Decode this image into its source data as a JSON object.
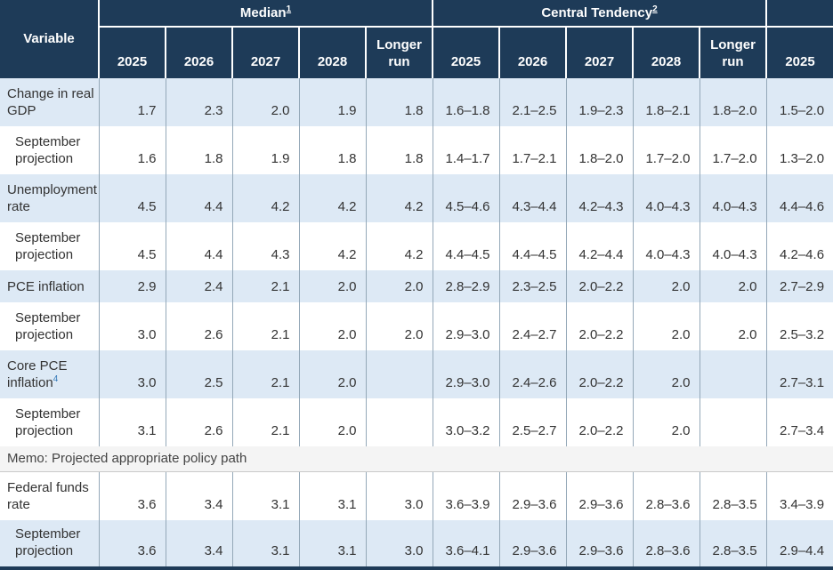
{
  "table": {
    "variable_header": "Variable",
    "groups": [
      {
        "label": "Median",
        "footnote": "1"
      },
      {
        "label": "Central Tendency",
        "footnote": "2"
      },
      {
        "label": "",
        "footnote": ""
      }
    ],
    "columns": [
      "2025",
      "2026",
      "2027",
      "2028",
      "Longer run",
      "2025",
      "2026",
      "2027",
      "2028",
      "Longer run",
      "2025"
    ],
    "rows": [
      {
        "label": "Change in real GDP",
        "footnote": "",
        "indent": false,
        "shade": "blue",
        "size": "tall",
        "values": [
          "1.7",
          "2.3",
          "2.0",
          "1.9",
          "1.8",
          "1.6–1.8",
          "2.1–2.5",
          "1.9–2.3",
          "1.8–2.1",
          "1.8–2.0",
          "1.5–2.0"
        ]
      },
      {
        "label": "September projection",
        "footnote": "",
        "indent": true,
        "shade": "white",
        "size": "tall",
        "values": [
          "1.6",
          "1.8",
          "1.9",
          "1.8",
          "1.8",
          "1.4–1.7",
          "1.7–2.1",
          "1.8–2.0",
          "1.7–2.0",
          "1.7–2.0",
          "1.3–2.0"
        ]
      },
      {
        "label": "Unemployment rate",
        "footnote": "",
        "indent": false,
        "shade": "blue",
        "size": "tall",
        "values": [
          "4.5",
          "4.4",
          "4.2",
          "4.2",
          "4.2",
          "4.5–4.6",
          "4.3–4.4",
          "4.2–4.3",
          "4.0–4.3",
          "4.0–4.3",
          "4.4–4.6"
        ]
      },
      {
        "label": "September projection",
        "footnote": "",
        "indent": true,
        "shade": "white",
        "size": "tall",
        "values": [
          "4.5",
          "4.4",
          "4.3",
          "4.2",
          "4.2",
          "4.4–4.5",
          "4.4–4.5",
          "4.2–4.4",
          "4.0–4.3",
          "4.0–4.3",
          "4.2–4.6"
        ]
      },
      {
        "label": "PCE inflation",
        "footnote": "",
        "indent": false,
        "shade": "blue",
        "size": "short",
        "values": [
          "2.9",
          "2.4",
          "2.1",
          "2.0",
          "2.0",
          "2.8–2.9",
          "2.3–2.5",
          "2.0–2.2",
          "2.0",
          "2.0",
          "2.7–2.9"
        ]
      },
      {
        "label": "September projection",
        "footnote": "",
        "indent": true,
        "shade": "white",
        "size": "tall",
        "values": [
          "3.0",
          "2.6",
          "2.1",
          "2.0",
          "2.0",
          "2.9–3.0",
          "2.4–2.7",
          "2.0–2.2",
          "2.0",
          "2.0",
          "2.5–3.2"
        ]
      },
      {
        "label": "Core PCE inflation",
        "footnote": "4",
        "indent": false,
        "shade": "blue",
        "size": "tall",
        "values": [
          "3.0",
          "2.5",
          "2.1",
          "2.0",
          "",
          "2.9–3.0",
          "2.4–2.6",
          "2.0–2.2",
          "2.0",
          "",
          "2.7–3.1"
        ]
      },
      {
        "label": "September projection",
        "footnote": "",
        "indent": true,
        "shade": "white",
        "size": "tall",
        "values": [
          "3.1",
          "2.6",
          "2.1",
          "2.0",
          "",
          "3.0–3.2",
          "2.5–2.7",
          "2.0–2.2",
          "2.0",
          "",
          "2.7–3.4"
        ]
      },
      {
        "type": "memo",
        "label": "Memo: Projected appropriate policy path"
      },
      {
        "label": "Federal funds rate",
        "footnote": "",
        "indent": false,
        "shade": "white",
        "size": "tall",
        "values": [
          "3.6",
          "3.4",
          "3.1",
          "3.1",
          "3.0",
          "3.6–3.9",
          "2.9–3.6",
          "2.9–3.6",
          "2.8–3.6",
          "2.8–3.5",
          "3.4–3.9"
        ]
      },
      {
        "label": "September projection",
        "footnote": "",
        "indent": true,
        "shade": "blue",
        "size": "tall",
        "values": [
          "3.6",
          "3.4",
          "3.1",
          "3.1",
          "3.0",
          "3.6–4.1",
          "2.9–3.6",
          "2.9–3.6",
          "2.8–3.6",
          "2.8–3.5",
          "2.9–4.4"
        ]
      }
    ]
  },
  "colors": {
    "header_navy": "#1e3b58",
    "row_blue": "#dde9f5",
    "row_white": "#ffffff",
    "memo_gray": "#f4f4f4",
    "body_text": "#333333",
    "cell_border": "#94a8b8",
    "footnote_link_blue": "#3579b8"
  }
}
